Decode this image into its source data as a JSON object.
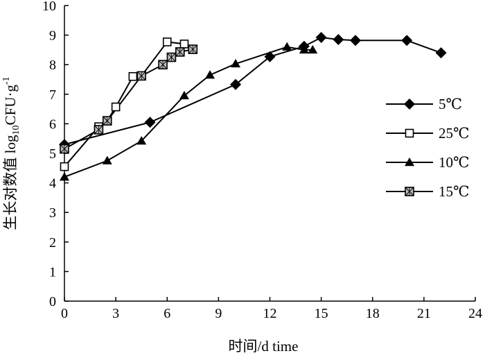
{
  "chart_data": {
    "type": "line",
    "xlabel": "时间/d time",
    "ylabel": {
      "prefix": "生长对数值 log",
      "subscript": "10",
      "unit": "CFU·g",
      "superscript": "-1"
    },
    "xlim": [
      0,
      24
    ],
    "ylim": [
      0,
      10
    ],
    "x_ticks": [
      "0",
      "3",
      "6",
      "9",
      "12",
      "15",
      "18",
      "21",
      "24"
    ],
    "y_ticks": [
      "0",
      "1",
      "2",
      "3",
      "4",
      "5",
      "6",
      "7",
      "8",
      "9",
      "10"
    ],
    "grid": false,
    "legend_position": "right",
    "series": [
      {
        "name": "5℃",
        "marker": "diamond",
        "x": [
          0,
          5,
          10,
          12,
          14,
          15,
          16,
          17,
          20,
          22
        ],
        "y": [
          5.3,
          6.05,
          7.33,
          8.27,
          8.62,
          8.92,
          8.85,
          8.82,
          8.82,
          8.4
        ]
      },
      {
        "name": "25℃",
        "marker": "square-open",
        "x": [
          0,
          2,
          2.5,
          3,
          4,
          4.5,
          6,
          7
        ],
        "y": [
          4.55,
          5.9,
          6.1,
          6.57,
          7.6,
          7.62,
          8.77,
          8.7
        ]
      },
      {
        "name": "10℃",
        "marker": "triangle",
        "x": [
          0,
          2.5,
          4.5,
          7,
          8.5,
          10,
          13,
          14,
          14.5
        ],
        "y": [
          4.2,
          4.75,
          5.42,
          6.95,
          7.65,
          8.03,
          8.6,
          8.5,
          8.5
        ]
      },
      {
        "name": "15℃",
        "marker": "square-hatched",
        "x": [
          0,
          2,
          2.5,
          4.5,
          5.75,
          6.25,
          6.75,
          7.5
        ],
        "y": [
          5.15,
          5.8,
          6.1,
          7.62,
          8.0,
          8.25,
          8.43,
          8.52
        ]
      }
    ]
  }
}
